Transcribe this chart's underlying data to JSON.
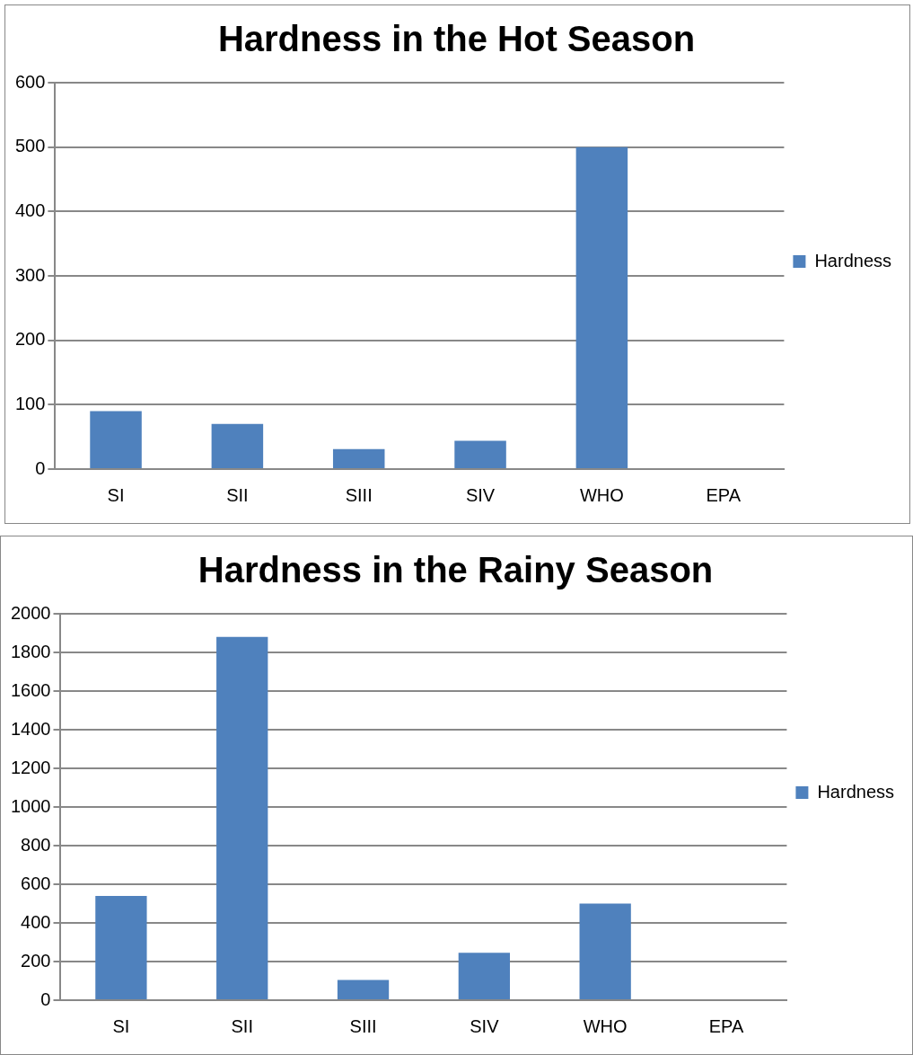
{
  "chart_data": [
    {
      "type": "bar",
      "title": "Hardness in the Hot Season",
      "categories": [
        "SI",
        "SII",
        "SIII",
        "SIV",
        "WHO",
        "EPA"
      ],
      "series": [
        {
          "name": "Hardness",
          "color": "#4f81bd",
          "values": [
            90,
            70,
            31,
            44,
            500,
            null
          ]
        }
      ],
      "ylim": [
        0,
        600
      ],
      "yticks": [
        0,
        100,
        200,
        300,
        400,
        500,
        600
      ],
      "grid": "y",
      "legend": "right"
    },
    {
      "type": "bar",
      "title": "Hardness in the Rainy Season",
      "categories": [
        "SI",
        "SII",
        "SIII",
        "SIV",
        "WHO",
        "EPA"
      ],
      "series": [
        {
          "name": "Hardness",
          "color": "#4f81bd",
          "values": [
            540,
            1880,
            105,
            245,
            500,
            null
          ]
        }
      ],
      "ylim": [
        0,
        2000
      ],
      "yticks": [
        0,
        200,
        400,
        600,
        800,
        1000,
        1200,
        1400,
        1600,
        1800,
        2000
      ],
      "grid": "y",
      "legend": "right"
    }
  ]
}
